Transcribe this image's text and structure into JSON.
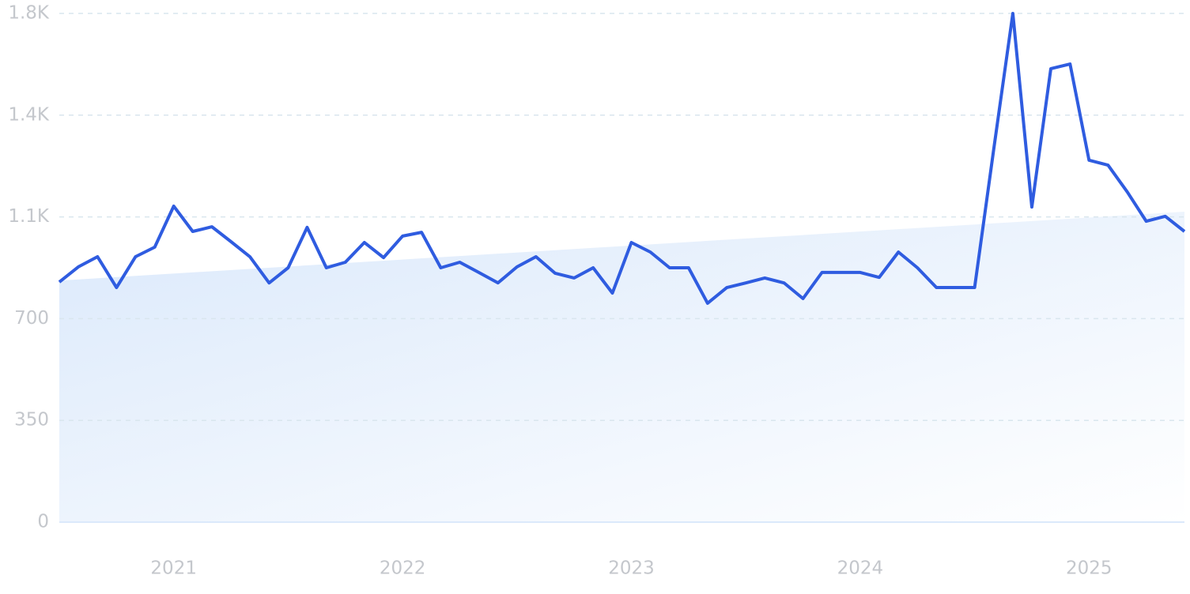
{
  "chart_data": {
    "type": "line",
    "x": [
      2020.5,
      2020.583,
      2020.667,
      2020.75,
      2020.833,
      2020.917,
      2021,
      2021.083,
      2021.167,
      2021.25,
      2021.333,
      2021.417,
      2021.5,
      2021.583,
      2021.667,
      2021.75,
      2021.833,
      2021.917,
      2022,
      2022.083,
      2022.167,
      2022.25,
      2022.333,
      2022.417,
      2022.5,
      2022.583,
      2022.667,
      2022.75,
      2022.833,
      2022.917,
      2023,
      2023.083,
      2023.167,
      2023.25,
      2023.333,
      2023.417,
      2023.5,
      2023.583,
      2023.667,
      2023.75,
      2023.833,
      2023.917,
      2024,
      2024.083,
      2024.167,
      2024.25,
      2024.333,
      2024.417,
      2024.5,
      2024.583,
      2024.667,
      2024.75,
      2024.833,
      2024.917,
      2025,
      2025.083,
      2025.167,
      2025.25,
      2025.333,
      2025.417
    ],
    "series": [
      {
        "color": "#2f5ce0",
        "values": [
          826,
          878,
          913,
          807,
          913,
          946,
          1087,
          1000,
          1016,
          965,
          913,
          823,
          875,
          1014,
          875,
          894,
          962,
          910,
          984,
          997,
          875,
          894,
          859,
          823,
          878,
          913,
          856,
          840,
          875,
          788,
          962,
          929,
          875,
          875,
          753,
          807,
          823,
          840,
          823,
          769,
          859,
          859,
          859,
          842,
          929,
          875,
          807,
          807,
          807,
          1280,
          1750,
          1084,
          1560,
          1576,
          1245,
          1228,
          1136,
          1035,
          1052,
          1000
        ]
      }
    ],
    "trend": {
      "x": [
        2020.5,
        2025.417
      ],
      "values": [
        831,
        1068
      ],
      "color": "#dbe9fb"
    },
    "xlim": [
      2020.5,
      2025.417
    ],
    "xticks": [
      2021,
      2022,
      2023,
      2024,
      2025
    ],
    "ylim": [
      0,
      1750
    ],
    "yticks": [
      0,
      350,
      700,
      {
        "value": 1050,
        "label": "1.1K"
      },
      {
        "value": 1400,
        "label": "1.4K"
      },
      {
        "value": 1750,
        "label": "1.8K"
      }
    ],
    "grid": true
  }
}
